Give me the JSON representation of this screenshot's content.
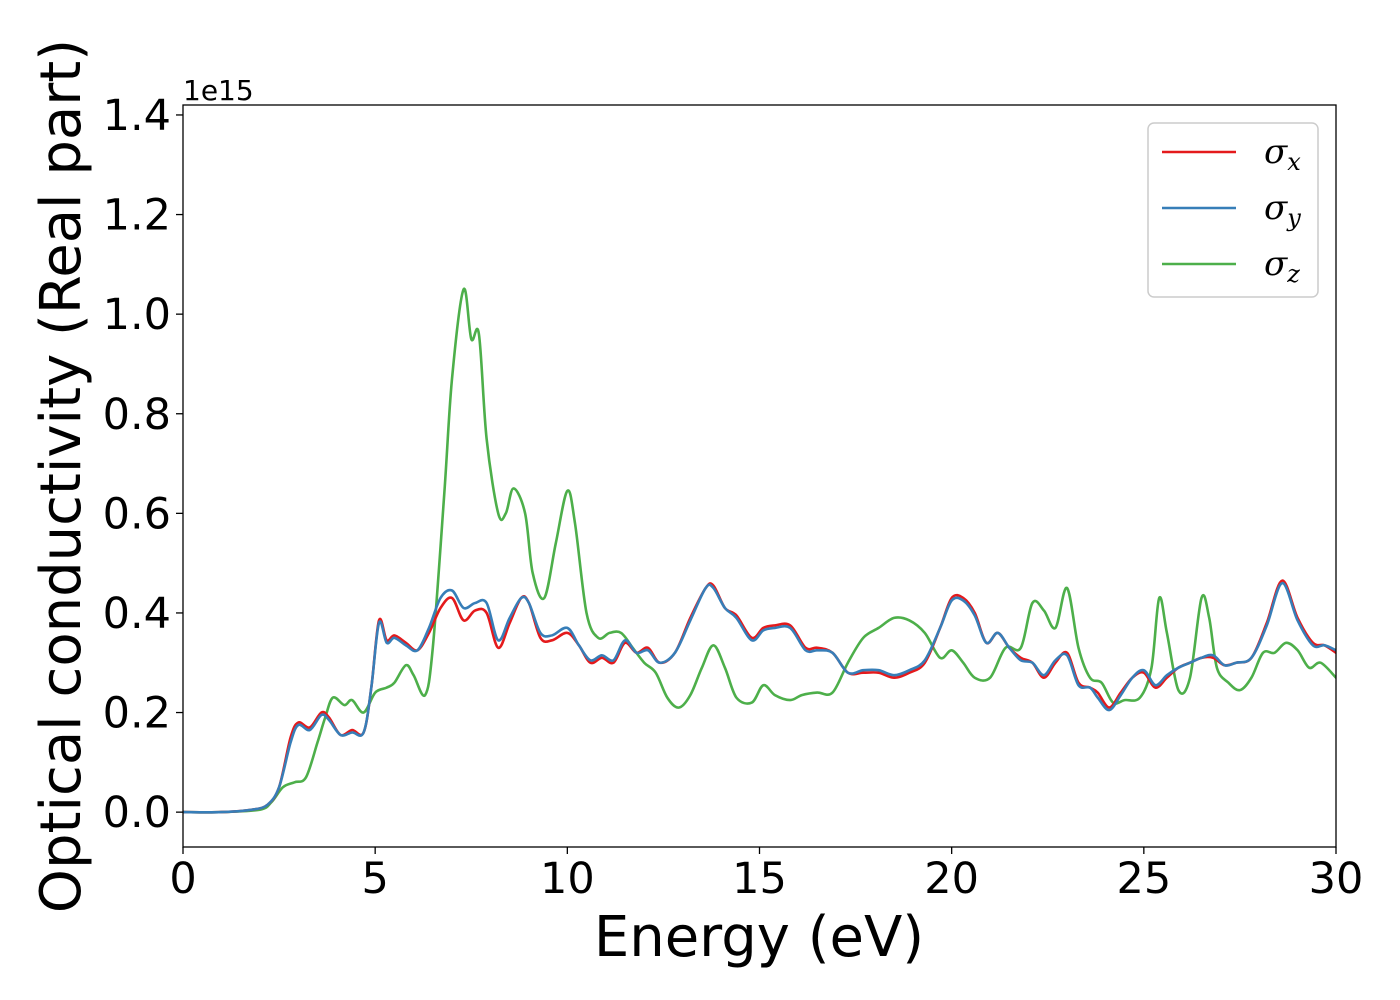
{
  "chart_data": {
    "type": "line",
    "xlabel": "Energy (eV)",
    "ylabel": "Optical conductivity (Real part)",
    "y_offset_label": "1e15",
    "xlim": [
      0,
      30
    ],
    "ylim": [
      -0.07,
      1.42
    ],
    "x_ticks": [
      0,
      5,
      10,
      15,
      20,
      25,
      30
    ],
    "x_tick_labels": [
      "0",
      "5",
      "10",
      "15",
      "20",
      "25",
      "30"
    ],
    "y_ticks": [
      0.0,
      0.2,
      0.4,
      0.6,
      0.8,
      1.0,
      1.2,
      1.4
    ],
    "y_tick_labels": [
      "0.0",
      "0.2",
      "0.4",
      "0.6",
      "0.8",
      "1.0",
      "1.2",
      "1.4"
    ],
    "grid": false,
    "legend_position": "top-right",
    "series": [
      {
        "name": "σx",
        "legend_symbol": "σ",
        "legend_subscript": "x",
        "color": "#e41a1c",
        "x": [
          0,
          1,
          1.8,
          2.2,
          2.5,
          2.8,
          3.0,
          3.3,
          3.6,
          3.8,
          4.1,
          4.4,
          4.7,
          4.9,
          5.1,
          5.3,
          5.5,
          5.8,
          6.1,
          6.4,
          6.7,
          7.0,
          7.3,
          7.6,
          7.9,
          8.2,
          8.5,
          8.8,
          9.0,
          9.3,
          9.6,
          10.0,
          10.3,
          10.6,
          10.9,
          11.2,
          11.5,
          11.8,
          12.1,
          12.4,
          12.8,
          13.2,
          13.6,
          13.8,
          14.1,
          14.4,
          14.8,
          15.1,
          15.4,
          15.8,
          16.2,
          16.5,
          16.9,
          17.3,
          17.7,
          18.1,
          18.5,
          18.9,
          19.3,
          19.7,
          20.0,
          20.3,
          20.6,
          20.9,
          21.2,
          21.5,
          21.8,
          22.1,
          22.4,
          22.7,
          23.0,
          23.3,
          23.6,
          23.8,
          24.1,
          24.4,
          24.7,
          25.0,
          25.3,
          25.6,
          25.9,
          26.2,
          26.5,
          26.8,
          27.1,
          27.4,
          27.8,
          28.2,
          28.6,
          29.0,
          29.4,
          29.7,
          30.0
        ],
        "y": [
          0.0,
          0.0,
          0.005,
          0.015,
          0.05,
          0.15,
          0.18,
          0.17,
          0.2,
          0.19,
          0.155,
          0.165,
          0.16,
          0.25,
          0.385,
          0.345,
          0.355,
          0.34,
          0.325,
          0.36,
          0.41,
          0.43,
          0.385,
          0.405,
          0.4,
          0.33,
          0.38,
          0.43,
          0.42,
          0.35,
          0.345,
          0.36,
          0.335,
          0.3,
          0.31,
          0.3,
          0.34,
          0.32,
          0.33,
          0.3,
          0.32,
          0.39,
          0.45,
          0.455,
          0.41,
          0.395,
          0.35,
          0.37,
          0.375,
          0.375,
          0.33,
          0.33,
          0.32,
          0.28,
          0.28,
          0.28,
          0.27,
          0.28,
          0.3,
          0.37,
          0.43,
          0.43,
          0.4,
          0.34,
          0.36,
          0.33,
          0.31,
          0.3,
          0.27,
          0.3,
          0.32,
          0.26,
          0.25,
          0.24,
          0.21,
          0.24,
          0.27,
          0.28,
          0.25,
          0.27,
          0.29,
          0.3,
          0.31,
          0.31,
          0.295,
          0.3,
          0.31,
          0.38,
          0.465,
          0.39,
          0.34,
          0.335,
          0.32
        ]
      },
      {
        "name": "σy",
        "legend_symbol": "σ",
        "legend_subscript": "y",
        "color": "#377eb8",
        "x": [
          0,
          1,
          1.8,
          2.2,
          2.5,
          2.8,
          3.0,
          3.3,
          3.6,
          3.8,
          4.1,
          4.4,
          4.7,
          4.9,
          5.1,
          5.3,
          5.5,
          5.8,
          6.1,
          6.4,
          6.7,
          7.0,
          7.3,
          7.6,
          7.9,
          8.2,
          8.5,
          8.8,
          9.0,
          9.3,
          9.6,
          10.0,
          10.3,
          10.6,
          10.9,
          11.2,
          11.5,
          11.8,
          12.1,
          12.4,
          12.8,
          13.2,
          13.6,
          13.8,
          14.1,
          14.4,
          14.8,
          15.1,
          15.4,
          15.8,
          16.2,
          16.5,
          16.9,
          17.3,
          17.7,
          18.1,
          18.5,
          18.9,
          19.3,
          19.7,
          20.0,
          20.3,
          20.6,
          20.9,
          21.2,
          21.5,
          21.8,
          22.1,
          22.4,
          22.7,
          23.0,
          23.3,
          23.6,
          23.8,
          24.1,
          24.4,
          24.7,
          25.0,
          25.3,
          25.6,
          25.9,
          26.2,
          26.5,
          26.8,
          27.1,
          27.4,
          27.8,
          28.2,
          28.6,
          29.0,
          29.4,
          29.7,
          30.0
        ],
        "y": [
          0.0,
          0.0,
          0.005,
          0.015,
          0.05,
          0.14,
          0.175,
          0.165,
          0.195,
          0.185,
          0.155,
          0.16,
          0.16,
          0.25,
          0.38,
          0.34,
          0.35,
          0.335,
          0.325,
          0.37,
          0.43,
          0.445,
          0.41,
          0.42,
          0.42,
          0.345,
          0.39,
          0.43,
          0.42,
          0.36,
          0.355,
          0.37,
          0.335,
          0.305,
          0.315,
          0.305,
          0.345,
          0.32,
          0.325,
          0.3,
          0.32,
          0.385,
          0.45,
          0.45,
          0.41,
          0.39,
          0.345,
          0.365,
          0.37,
          0.37,
          0.325,
          0.325,
          0.32,
          0.28,
          0.285,
          0.285,
          0.275,
          0.285,
          0.305,
          0.37,
          0.425,
          0.425,
          0.395,
          0.34,
          0.36,
          0.33,
          0.305,
          0.3,
          0.275,
          0.305,
          0.315,
          0.255,
          0.25,
          0.23,
          0.205,
          0.235,
          0.27,
          0.285,
          0.255,
          0.275,
          0.29,
          0.3,
          0.31,
          0.315,
          0.295,
          0.3,
          0.31,
          0.375,
          0.46,
          0.385,
          0.335,
          0.335,
          0.325
        ]
      },
      {
        "name": "σz",
        "legend_symbol": "σ",
        "legend_subscript": "z",
        "color": "#4daf4a",
        "x": [
          0,
          1,
          2.0,
          2.3,
          2.6,
          2.9,
          3.2,
          3.5,
          3.7,
          3.9,
          4.2,
          4.4,
          4.7,
          5.0,
          5.3,
          5.5,
          5.8,
          6.0,
          6.3,
          6.5,
          6.8,
          7.0,
          7.3,
          7.5,
          7.7,
          7.9,
          8.2,
          8.4,
          8.6,
          8.9,
          9.1,
          9.4,
          9.7,
          10.0,
          10.2,
          10.5,
          10.8,
          11.1,
          11.4,
          11.7,
          12.0,
          12.3,
          12.6,
          12.9,
          13.2,
          13.5,
          13.8,
          14.1,
          14.4,
          14.8,
          15.1,
          15.4,
          15.8,
          16.1,
          16.5,
          16.9,
          17.3,
          17.7,
          18.1,
          18.5,
          18.9,
          19.3,
          19.7,
          20.0,
          20.3,
          20.6,
          21.0,
          21.4,
          21.8,
          22.1,
          22.4,
          22.7,
          23.0,
          23.3,
          23.6,
          23.9,
          24.2,
          24.5,
          24.9,
          25.2,
          25.4,
          25.6,
          25.9,
          26.2,
          26.5,
          26.7,
          26.9,
          27.2,
          27.5,
          27.8,
          28.1,
          28.4,
          28.7,
          29.0,
          29.3,
          29.6,
          30.0
        ],
        "y": [
          0.0,
          0.0,
          0.005,
          0.02,
          0.05,
          0.06,
          0.07,
          0.14,
          0.19,
          0.23,
          0.215,
          0.225,
          0.2,
          0.24,
          0.25,
          0.26,
          0.295,
          0.275,
          0.235,
          0.33,
          0.64,
          0.87,
          1.05,
          0.95,
          0.96,
          0.75,
          0.6,
          0.6,
          0.65,
          0.6,
          0.48,
          0.43,
          0.54,
          0.645,
          0.58,
          0.4,
          0.35,
          0.36,
          0.36,
          0.33,
          0.3,
          0.28,
          0.23,
          0.21,
          0.235,
          0.29,
          0.335,
          0.29,
          0.23,
          0.22,
          0.255,
          0.235,
          0.225,
          0.235,
          0.24,
          0.24,
          0.3,
          0.35,
          0.37,
          0.39,
          0.385,
          0.36,
          0.31,
          0.325,
          0.3,
          0.27,
          0.27,
          0.33,
          0.33,
          0.42,
          0.405,
          0.37,
          0.45,
          0.33,
          0.27,
          0.26,
          0.22,
          0.225,
          0.23,
          0.29,
          0.43,
          0.36,
          0.245,
          0.27,
          0.43,
          0.39,
          0.29,
          0.26,
          0.245,
          0.27,
          0.32,
          0.32,
          0.34,
          0.325,
          0.29,
          0.3,
          0.27
        ]
      }
    ]
  }
}
